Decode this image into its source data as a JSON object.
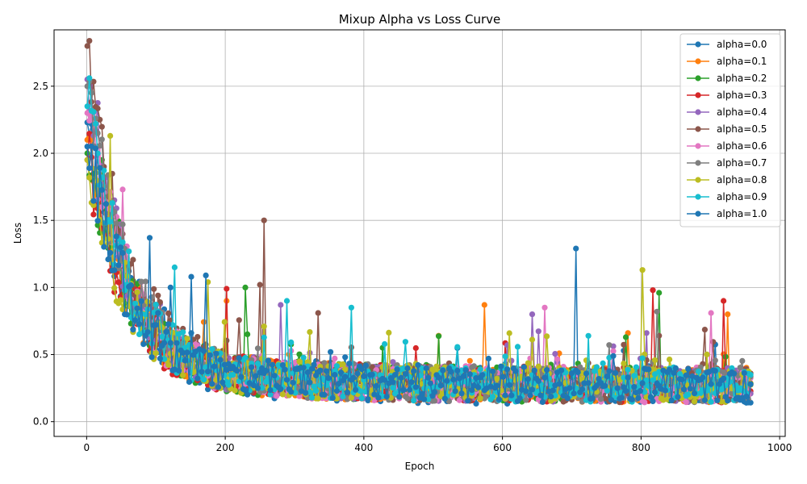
{
  "chart_data": {
    "type": "line",
    "title": "Mixup Alpha vs Loss Curve",
    "xlabel": "Epoch",
    "ylabel": "Loss",
    "xlim": [
      -47,
      1008
    ],
    "ylim": [
      -0.11,
      2.92
    ],
    "xticks": [
      0,
      200,
      400,
      600,
      800,
      1000
    ],
    "xtick_labels": [
      "0",
      "200",
      "400",
      "600",
      "800",
      "1000"
    ],
    "yticks": [
      0.0,
      0.5,
      1.0,
      1.5,
      2.0,
      2.5
    ],
    "ytick_labels": [
      "0.0",
      "0.5",
      "1.0",
      "1.5",
      "2.0",
      "2.5"
    ],
    "grid": true,
    "legend_position": "top-right",
    "marker": "circle",
    "x_range": [
      1,
      960
    ],
    "series": [
      {
        "name": "alpha=0.0",
        "color": "#1f77b4",
        "start": 2.23,
        "floor": 0.25,
        "spread": 0.5,
        "seed": 11,
        "spikes": [
          [
            705,
            1.29
          ],
          [
            120,
            1.0
          ],
          [
            150,
            1.08
          ]
        ]
      },
      {
        "name": "alpha=0.1",
        "color": "#ff7f0e",
        "start": 2.1,
        "floor": 0.27,
        "spread": 0.5,
        "seed": 23,
        "spikes": [
          [
            572,
            0.87
          ],
          [
            925,
            0.8
          ],
          [
            200,
            0.9
          ]
        ]
      },
      {
        "name": "alpha=0.2",
        "color": "#2ca02c",
        "start": 2.0,
        "floor": 0.27,
        "spread": 0.5,
        "seed": 37,
        "spikes": [
          [
            825,
            0.96
          ],
          [
            228,
            1.0
          ],
          [
            20,
            1.95
          ]
        ]
      },
      {
        "name": "alpha=0.3",
        "color": "#d62728",
        "start": 1.95,
        "floor": 0.27,
        "spread": 0.5,
        "seed": 41,
        "spikes": [
          [
            815,
            0.98
          ],
          [
            918,
            0.9
          ],
          [
            200,
            0.99
          ]
        ]
      },
      {
        "name": "alpha=0.4",
        "color": "#9467bd",
        "start": 2.55,
        "floor": 0.27,
        "spread": 0.5,
        "seed": 53,
        "spikes": [
          [
            643,
            0.8
          ],
          [
            280,
            0.87
          ],
          [
            40,
            1.65
          ]
        ]
      },
      {
        "name": "alpha=0.5",
        "color": "#8c564b",
        "start": 2.8,
        "floor": 0.27,
        "spread": 0.5,
        "seed": 67,
        "spikes": [
          [
            256,
            1.5
          ],
          [
            250,
            1.02
          ],
          [
            332,
            0.81
          ]
        ]
      },
      {
        "name": "alpha=0.6",
        "color": "#e377c2",
        "start": 2.3,
        "floor": 0.27,
        "spread": 0.5,
        "seed": 71,
        "spikes": [
          [
            52,
            1.73
          ],
          [
            900,
            0.81
          ],
          [
            660,
            0.85
          ]
        ]
      },
      {
        "name": "alpha=0.7",
        "color": "#7f7f7f",
        "start": 2.5,
        "floor": 0.27,
        "spread": 0.5,
        "seed": 83,
        "spikes": [
          [
            822,
            0.82
          ],
          [
            15,
            2.15
          ]
        ]
      },
      {
        "name": "alpha=0.8",
        "color": "#bcbd22",
        "start": 1.95,
        "floor": 0.27,
        "spread": 0.5,
        "seed": 97,
        "spikes": [
          [
            32,
            2.13
          ],
          [
            800,
            1.13
          ],
          [
            175,
            1.04
          ]
        ]
      },
      {
        "name": "alpha=0.9",
        "color": "#17becf",
        "start": 2.35,
        "floor": 0.27,
        "spread": 0.5,
        "seed": 101,
        "spikes": [
          [
            288,
            0.9
          ],
          [
            380,
            0.85
          ],
          [
            125,
            1.15
          ]
        ]
      },
      {
        "name": "alpha=1.0",
        "color": "#1f77b4",
        "start": 2.05,
        "floor": 0.27,
        "spread": 0.5,
        "seed": 113,
        "spikes": [
          [
            170,
            1.09
          ],
          [
            90,
            1.37
          ]
        ]
      }
    ]
  }
}
